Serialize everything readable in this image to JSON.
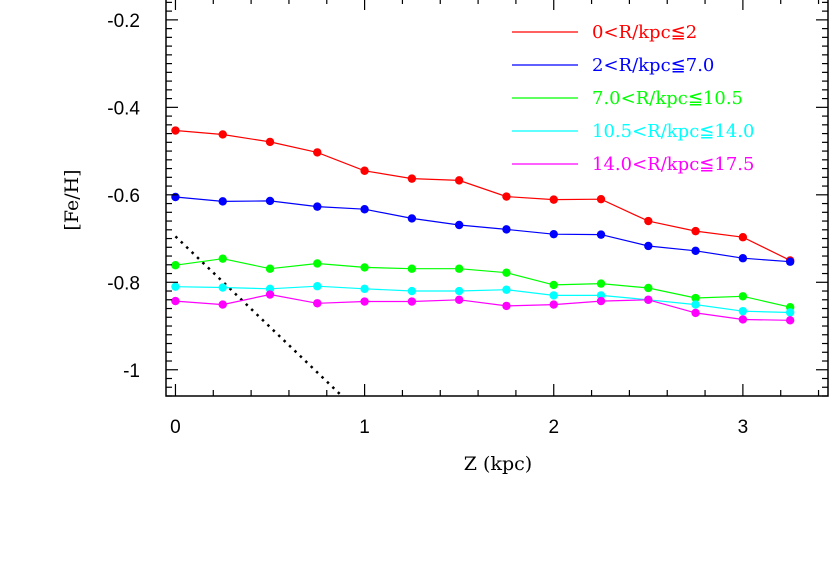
{
  "chart_data": {
    "type": "line",
    "xlabel": "Z (kpc)",
    "ylabel": "[Fe/H]",
    "xlim": [
      -0.05,
      3.45
    ],
    "ylim": [
      -1.06,
      -0.15
    ],
    "x_ticks": [
      0,
      1,
      2,
      3
    ],
    "x_tick_labels": [
      "0",
      "1",
      "2",
      "3"
    ],
    "y_ticks": [
      -0.2,
      -0.4,
      -0.6,
      -0.8,
      -1.0
    ],
    "y_tick_labels": [
      "-0.2",
      "-0.4",
      "-0.6",
      "-0.8",
      "-1"
    ],
    "grid": false,
    "legend_position": "top-right",
    "x": [
      0,
      0.25,
      0.5,
      0.75,
      1.0,
      1.25,
      1.5,
      1.75,
      2.0,
      2.25,
      2.5,
      2.75,
      3.0,
      3.25
    ],
    "series": [
      {
        "name": "0<R/kpc≦2",
        "color": "#ff0000",
        "values": [
          -0.453,
          -0.462,
          -0.479,
          -0.503,
          -0.545,
          -0.563,
          -0.567,
          -0.604,
          -0.611,
          -0.61,
          -0.66,
          -0.683,
          -0.697,
          -0.75
        ]
      },
      {
        "name": "2<R/kpc≦7.0",
        "color": "#0000ff",
        "values": [
          -0.605,
          -0.615,
          -0.614,
          -0.627,
          -0.633,
          -0.654,
          -0.669,
          -0.679,
          -0.69,
          -0.691,
          -0.717,
          -0.728,
          -0.745,
          -0.753
        ]
      },
      {
        "name": "7.0<R/kpc≦10.5",
        "color": "#00ff00",
        "values": [
          -0.761,
          -0.746,
          -0.769,
          -0.757,
          -0.766,
          -0.769,
          -0.769,
          -0.778,
          -0.806,
          -0.803,
          -0.813,
          -0.836,
          -0.832,
          -0.857
        ]
      },
      {
        "name": "10.5<R/kpc≦14.0",
        "color": "#00ffff",
        "values": [
          -0.81,
          -0.812,
          -0.815,
          -0.809,
          -0.815,
          -0.82,
          -0.82,
          -0.817,
          -0.83,
          -0.83,
          -0.84,
          -0.851,
          -0.866,
          -0.869
        ]
      },
      {
        "name": "14.0<R/kpc≦17.5",
        "color": "#ff00ff",
        "values": [
          -0.843,
          -0.851,
          -0.828,
          -0.848,
          -0.844,
          -0.844,
          -0.84,
          -0.854,
          -0.851,
          -0.843,
          -0.84,
          -0.87,
          -0.885,
          -0.887
        ]
      }
    ],
    "reference_line": {
      "style": "dotted",
      "color": "#000000",
      "x": [
        0,
        0.88
      ],
      "y": [
        -0.695,
        -1.06
      ]
    }
  }
}
